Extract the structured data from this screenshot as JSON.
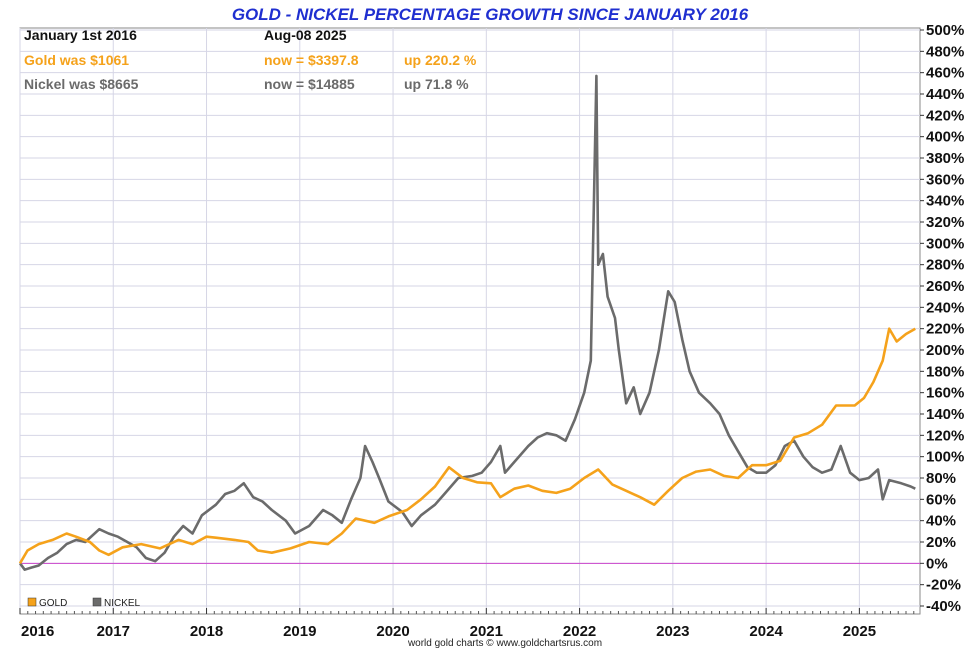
{
  "chart_data": {
    "type": "line",
    "title": "GOLD - NICKEL PERCENTAGE GROWTH SINCE JANUARY 2016",
    "info": {
      "start_label": "January 1st 2016",
      "end_label": "Aug-08  2025",
      "gold_start": "Gold was $1061",
      "gold_now": "now = $3397.8",
      "gold_up": "up 220.2 %",
      "nickel_start": "Nickel was $8665",
      "nickel_now": "now = $14885",
      "nickel_up": "up 71.8 %"
    },
    "x_ticks": [
      "2016",
      "2017",
      "2018",
      "2019",
      "2020",
      "2021",
      "2022",
      "2023",
      "2024",
      "2025"
    ],
    "y_ticks": [
      "500%",
      "480%",
      "460%",
      "440%",
      "420%",
      "400%",
      "380%",
      "360%",
      "340%",
      "320%",
      "300%",
      "280%",
      "260%",
      "240%",
      "220%",
      "200%",
      "180%",
      "160%",
      "140%",
      "120%",
      "100%",
      "80%",
      "60%",
      "40%",
      "20%",
      "0%",
      "-20%",
      "-40%"
    ],
    "ylim": [
      -40,
      500
    ],
    "xlim": [
      2016.0,
      2025.65
    ],
    "grid": true,
    "legend_position": "bottom-left",
    "credit": "world gold charts © www.goldchartsrus.com",
    "colors": {
      "gold": "#f5a21b",
      "nickel": "#6b6b6b",
      "zero_line": "#cc44cc",
      "title": "#1f2fd0",
      "grid": "#d6d6e6"
    },
    "series": [
      {
        "name": "GOLD",
        "color": "#f5a21b",
        "points": [
          [
            2016.0,
            0
          ],
          [
            2016.08,
            12
          ],
          [
            2016.2,
            18
          ],
          [
            2016.35,
            22
          ],
          [
            2016.5,
            28
          ],
          [
            2016.6,
            25
          ],
          [
            2016.75,
            20
          ],
          [
            2016.85,
            12
          ],
          [
            2016.95,
            8
          ],
          [
            2017.1,
            15
          ],
          [
            2017.3,
            18
          ],
          [
            2017.5,
            14
          ],
          [
            2017.7,
            22
          ],
          [
            2017.85,
            18
          ],
          [
            2018.0,
            25
          ],
          [
            2018.1,
            24
          ],
          [
            2018.3,
            22
          ],
          [
            2018.45,
            20
          ],
          [
            2018.55,
            12
          ],
          [
            2018.7,
            10
          ],
          [
            2018.9,
            14
          ],
          [
            2019.1,
            20
          ],
          [
            2019.3,
            18
          ],
          [
            2019.45,
            28
          ],
          [
            2019.6,
            42
          ],
          [
            2019.8,
            38
          ],
          [
            2019.95,
            44
          ],
          [
            2020.15,
            50
          ],
          [
            2020.3,
            60
          ],
          [
            2020.45,
            72
          ],
          [
            2020.6,
            90
          ],
          [
            2020.75,
            80
          ],
          [
            2020.9,
            76
          ],
          [
            2021.05,
            75
          ],
          [
            2021.15,
            62
          ],
          [
            2021.3,
            70
          ],
          [
            2021.45,
            73
          ],
          [
            2021.6,
            68
          ],
          [
            2021.75,
            66
          ],
          [
            2021.9,
            70
          ],
          [
            2022.05,
            80
          ],
          [
            2022.2,
            88
          ],
          [
            2022.35,
            74
          ],
          [
            2022.5,
            68
          ],
          [
            2022.65,
            62
          ],
          [
            2022.8,
            55
          ],
          [
            2022.95,
            68
          ],
          [
            2023.1,
            80
          ],
          [
            2023.25,
            86
          ],
          [
            2023.4,
            88
          ],
          [
            2023.55,
            82
          ],
          [
            2023.7,
            80
          ],
          [
            2023.85,
            92
          ],
          [
            2024.0,
            92
          ],
          [
            2024.15,
            96
          ],
          [
            2024.3,
            118
          ],
          [
            2024.45,
            122
          ],
          [
            2024.6,
            130
          ],
          [
            2024.75,
            148
          ],
          [
            2024.85,
            148
          ],
          [
            2024.95,
            148
          ],
          [
            2025.05,
            155
          ],
          [
            2025.15,
            170
          ],
          [
            2025.25,
            190
          ],
          [
            2025.32,
            220
          ],
          [
            2025.4,
            208
          ],
          [
            2025.5,
            215
          ],
          [
            2025.6,
            220
          ]
        ]
      },
      {
        "name": "NICKEL",
        "color": "#6b6b6b",
        "points": [
          [
            2016.0,
            0
          ],
          [
            2016.05,
            -6
          ],
          [
            2016.12,
            -4
          ],
          [
            2016.2,
            -2
          ],
          [
            2016.3,
            5
          ],
          [
            2016.4,
            10
          ],
          [
            2016.5,
            18
          ],
          [
            2016.6,
            22
          ],
          [
            2016.7,
            20
          ],
          [
            2016.85,
            32
          ],
          [
            2016.95,
            28
          ],
          [
            2017.05,
            25
          ],
          [
            2017.15,
            20
          ],
          [
            2017.25,
            15
          ],
          [
            2017.35,
            5
          ],
          [
            2017.45,
            2
          ],
          [
            2017.55,
            10
          ],
          [
            2017.65,
            25
          ],
          [
            2017.75,
            35
          ],
          [
            2017.85,
            28
          ],
          [
            2017.95,
            45
          ],
          [
            2018.1,
            55
          ],
          [
            2018.2,
            65
          ],
          [
            2018.3,
            68
          ],
          [
            2018.4,
            75
          ],
          [
            2018.5,
            62
          ],
          [
            2018.6,
            58
          ],
          [
            2018.7,
            50
          ],
          [
            2018.85,
            40
          ],
          [
            2018.95,
            28
          ],
          [
            2019.1,
            35
          ],
          [
            2019.25,
            50
          ],
          [
            2019.35,
            45
          ],
          [
            2019.45,
            38
          ],
          [
            2019.55,
            60
          ],
          [
            2019.65,
            80
          ],
          [
            2019.7,
            110
          ],
          [
            2019.78,
            95
          ],
          [
            2019.85,
            80
          ],
          [
            2019.95,
            58
          ],
          [
            2020.1,
            48
          ],
          [
            2020.2,
            35
          ],
          [
            2020.3,
            45
          ],
          [
            2020.45,
            55
          ],
          [
            2020.55,
            65
          ],
          [
            2020.7,
            80
          ],
          [
            2020.85,
            82
          ],
          [
            2020.95,
            85
          ],
          [
            2021.05,
            95
          ],
          [
            2021.15,
            110
          ],
          [
            2021.2,
            85
          ],
          [
            2021.3,
            95
          ],
          [
            2021.45,
            110
          ],
          [
            2021.55,
            118
          ],
          [
            2021.65,
            122
          ],
          [
            2021.75,
            120
          ],
          [
            2021.85,
            115
          ],
          [
            2021.95,
            135
          ],
          [
            2022.05,
            160
          ],
          [
            2022.12,
            190
          ],
          [
            2022.18,
            457
          ],
          [
            2022.2,
            280
          ],
          [
            2022.25,
            290
          ],
          [
            2022.3,
            250
          ],
          [
            2022.38,
            230
          ],
          [
            2022.42,
            200
          ],
          [
            2022.5,
            150
          ],
          [
            2022.58,
            165
          ],
          [
            2022.65,
            140
          ],
          [
            2022.75,
            160
          ],
          [
            2022.85,
            200
          ],
          [
            2022.95,
            255
          ],
          [
            2023.02,
            245
          ],
          [
            2023.1,
            210
          ],
          [
            2023.18,
            180
          ],
          [
            2023.28,
            160
          ],
          [
            2023.4,
            150
          ],
          [
            2023.5,
            140
          ],
          [
            2023.6,
            120
          ],
          [
            2023.7,
            105
          ],
          [
            2023.8,
            90
          ],
          [
            2023.9,
            85
          ],
          [
            2024.0,
            85
          ],
          [
            2024.1,
            92
          ],
          [
            2024.2,
            110
          ],
          [
            2024.3,
            115
          ],
          [
            2024.4,
            100
          ],
          [
            2024.5,
            90
          ],
          [
            2024.6,
            85
          ],
          [
            2024.7,
            88
          ],
          [
            2024.8,
            110
          ],
          [
            2024.9,
            85
          ],
          [
            2025.0,
            78
          ],
          [
            2025.1,
            80
          ],
          [
            2025.2,
            88
          ],
          [
            2025.25,
            60
          ],
          [
            2025.32,
            78
          ],
          [
            2025.45,
            75
          ],
          [
            2025.55,
            72
          ],
          [
            2025.6,
            70
          ]
        ]
      }
    ]
  }
}
